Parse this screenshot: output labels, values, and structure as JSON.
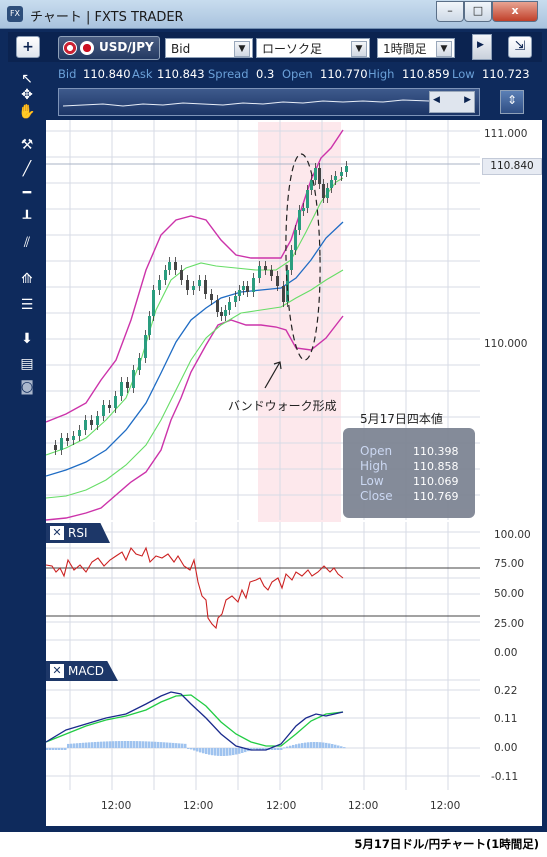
{
  "window": {
    "title": "チャート | FXTS TRADER",
    "buttons": [
      "–",
      "□",
      "x"
    ]
  },
  "toolbar": {
    "add_label": "+",
    "symbol": "USD/JPY",
    "price_type": "Bid",
    "chart_type": "ローソク足",
    "timeframe": "1時間足"
  },
  "quote": {
    "bid_label": "Bid",
    "bid": "110.840",
    "ask_label": "Ask",
    "ask": "110.843",
    "spread_label": "Spread",
    "spread": "0.3",
    "open_label": "Open",
    "open": "110.770",
    "high_label": "High",
    "high": "110.859",
    "low_label": "Low",
    "low": "110.723"
  },
  "left_tools": [
    "cursor-icon",
    "crosshair-cursor-icon",
    "hand-icon",
    "pin-icon",
    "line-icon",
    "horizontal-line-icon",
    "t-line-icon",
    "parallel-lines-icon",
    "fan-icon",
    "fib-lines-icon",
    "download-icon",
    "list-icon",
    "camera-icon"
  ],
  "annotation": {
    "band_walk": "バンドウォーク形成",
    "candle_title": "5月17日四本値"
  },
  "ohlc_box": [
    {
      "label": "Open",
      "value": "110.398"
    },
    {
      "label": "High",
      "value": "110.858"
    },
    {
      "label": "Low",
      "value": "110.069"
    },
    {
      "label": "Close",
      "value": "110.769"
    }
  ],
  "price_axis": {
    "labels": [
      "111.000",
      "110.000"
    ],
    "current": "110.840"
  },
  "rsi_panel": {
    "title": "RSI",
    "labels": [
      "100.00",
      "75.00",
      "50.00",
      "25.00",
      "0.00"
    ]
  },
  "macd_panel": {
    "title": "MACD",
    "labels": [
      "0.22",
      "0.11",
      "0.00",
      "-0.11"
    ]
  },
  "time_axis": [
    "12:00",
    "12:00",
    "12:00",
    "12:00",
    "12:00"
  ],
  "caption": "5月17日ドル/円チャート(1時間足)",
  "colors": {
    "frame": "#0e2a5c",
    "bollinger_outer": "#cc33aa",
    "bollinger_inner": "#66dd66",
    "ma": "#1f6cc4",
    "candle": "#2a9d7f",
    "rsi": "#cc2222",
    "macd": "#1a2a8c",
    "signal": "#22cc44",
    "hist": "#9fc3ef",
    "highlight": "#fde8ec"
  }
}
